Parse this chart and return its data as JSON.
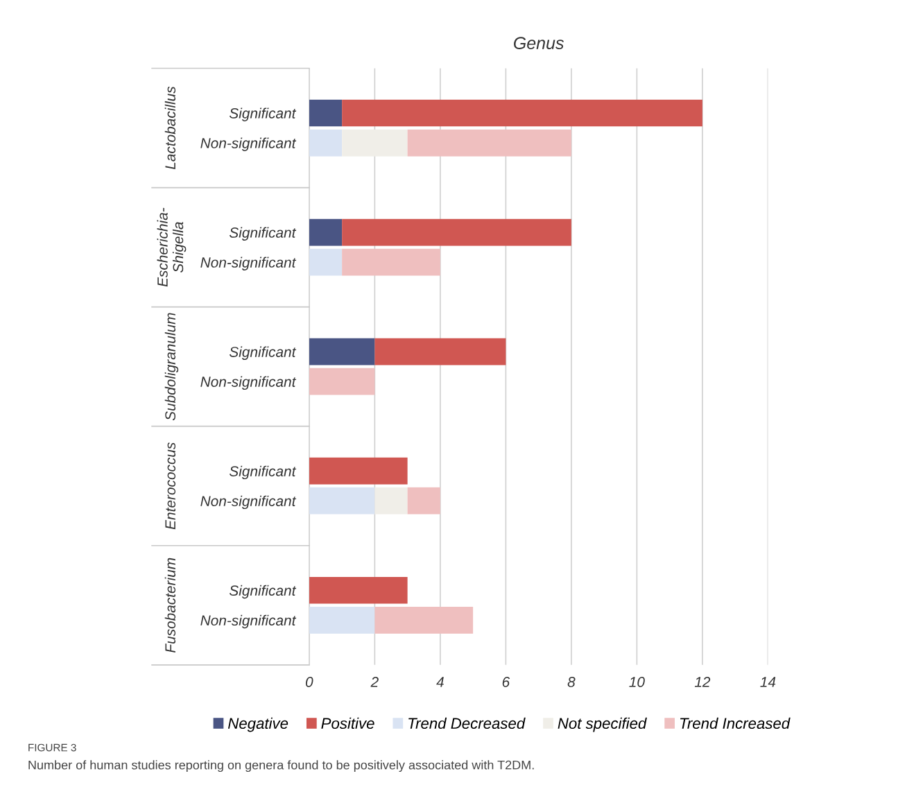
{
  "chart_data": {
    "type": "bar",
    "orientation": "horizontal",
    "stacked": true,
    "title": "Genus",
    "categories": [
      null,
      "Significant",
      "Non-significant",
      null,
      null,
      "Significant",
      "Non-significant",
      null,
      null,
      "Significant",
      "Non-significant",
      null,
      null,
      "Significant",
      "Non-significant",
      null,
      null,
      "Significant",
      "Non-significant",
      null
    ],
    "series": [
      {
        "name": "Negative",
        "color": "#4a5584",
        "values": [
          null,
          1,
          null,
          null,
          null,
          1,
          null,
          null,
          null,
          2,
          null,
          null,
          null,
          null,
          null,
          null,
          null,
          null,
          null,
          null
        ]
      },
      {
        "name": "Positive",
        "color": "#d05752",
        "values": [
          null,
          11,
          null,
          null,
          null,
          7,
          null,
          null,
          null,
          4,
          null,
          null,
          null,
          3,
          null,
          null,
          null,
          3,
          null,
          null
        ]
      },
      {
        "name": "Trend Decreased",
        "color": "#d9e3f3",
        "values": [
          null,
          null,
          1,
          null,
          null,
          null,
          1,
          null,
          null,
          null,
          null,
          null,
          null,
          null,
          2,
          null,
          null,
          null,
          2,
          null
        ]
      },
      {
        "name": "Not specified",
        "color": "#f0eee8",
        "values": [
          null,
          null,
          2,
          null,
          null,
          null,
          null,
          null,
          null,
          null,
          null,
          null,
          null,
          null,
          1,
          null,
          null,
          null,
          null,
          null
        ]
      },
      {
        "name": "Trend Increased",
        "color": "#efbfbf",
        "values": [
          null,
          null,
          5,
          null,
          null,
          null,
          3,
          null,
          null,
          null,
          2,
          null,
          null,
          null,
          1,
          null,
          null,
          null,
          3,
          null
        ]
      }
    ],
    "annotations": [
      "Lactobacillus",
      "Escherichia-\nShigella",
      "Subdoligranulum",
      "Enterococcus",
      "Fusobacterium",
      "FIGURE 3",
      "Number of human studies reporting on genera found to be positively associated with T2DM."
    ],
    "xlim": [
      0,
      14
    ],
    "xticks": [
      0,
      2,
      4,
      6,
      8,
      10,
      12,
      14
    ],
    "grid": "x",
    "legend": "bottom"
  }
}
